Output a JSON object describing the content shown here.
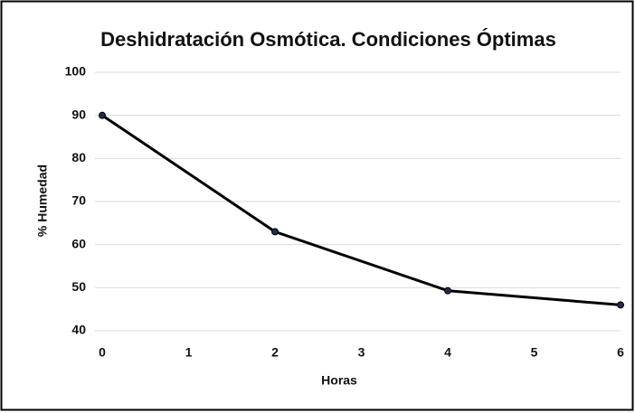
{
  "chart_data": {
    "type": "line",
    "title": "Deshidratación Osmótica. Condiciones Óptimas",
    "x_label": "Horas",
    "y_label": "% Humedad",
    "x": [
      0,
      2,
      4,
      6
    ],
    "series": [
      {
        "name": "% Humedad",
        "color": "#000000",
        "marker_color": "#1f2d4d",
        "values": [
          90,
          63,
          49.3,
          46
        ]
      }
    ],
    "xlim": [
      0,
      6
    ],
    "xticks": [
      0,
      1,
      2,
      3,
      4,
      5,
      6
    ],
    "ylim": [
      40,
      100
    ],
    "yticks": [
      40,
      50,
      60,
      70,
      80,
      90,
      100
    ],
    "grid": true
  }
}
